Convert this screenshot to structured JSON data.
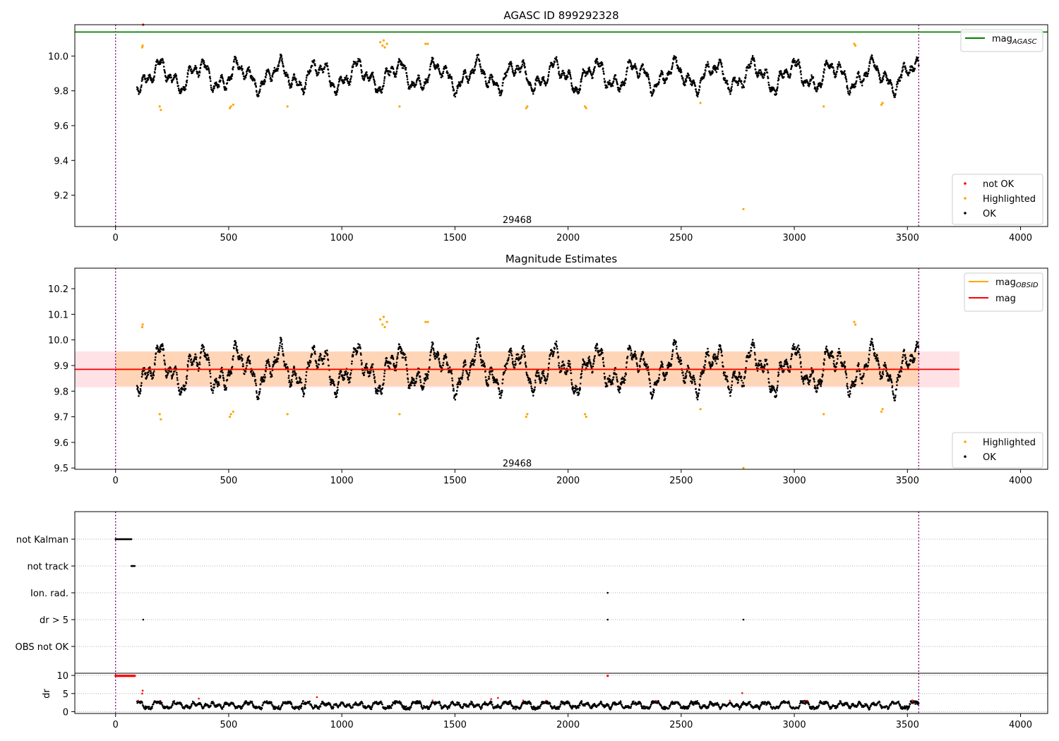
{
  "chart_data": [
    {
      "type": "scatter",
      "title": "AGASC ID 899292328",
      "xlim": [
        -180,
        4120
      ],
      "ylim": [
        9.02,
        10.18
      ],
      "x_ticks": [
        0,
        500,
        1000,
        1500,
        2000,
        2500,
        3000,
        3500,
        4000
      ],
      "x_tick_labels": [
        "0",
        "500",
        "1000",
        "1500",
        "2000",
        "2500",
        "3000",
        "3500",
        "4000"
      ],
      "y_ticks": [
        9.2,
        9.4,
        9.6,
        9.8,
        10.0
      ],
      "y_tick_labels": [
        "9.2",
        "9.4",
        "9.6",
        "9.8",
        "10.0"
      ],
      "obsid_boundaries": [
        0,
        3550
      ],
      "annotation": {
        "text": "29468",
        "x": 1775,
        "y": 9.06
      },
      "mag_agasc": 10.138,
      "legend_top": [
        {
          "label": "mag",
          "sub": "AGASC",
          "color": "#008000"
        }
      ],
      "legend_bottom": [
        {
          "label": "not OK",
          "color": "#ff0000"
        },
        {
          "label": "Highlighted",
          "color": "#ffa500"
        },
        {
          "label": "OK",
          "color": "#000000"
        }
      ],
      "highlighted": [
        [
          118,
          10.05
        ],
        [
          120,
          10.06
        ],
        [
          195,
          9.71
        ],
        [
          200,
          9.69
        ],
        [
          505,
          9.7
        ],
        [
          510,
          9.71
        ],
        [
          520,
          9.72
        ],
        [
          760,
          9.71
        ],
        [
          1170,
          10.08
        ],
        [
          1180,
          10.06
        ],
        [
          1185,
          10.09
        ],
        [
          1190,
          10.05
        ],
        [
          1200,
          10.07
        ],
        [
          1255,
          9.71
        ],
        [
          1370,
          10.07
        ],
        [
          1380,
          10.07
        ],
        [
          1815,
          9.7
        ],
        [
          1820,
          9.71
        ],
        [
          2075,
          9.71
        ],
        [
          2080,
          9.7
        ],
        [
          2585,
          9.73
        ],
        [
          2775,
          9.12
        ],
        [
          3130,
          9.71
        ],
        [
          3265,
          10.07
        ],
        [
          3270,
          10.06
        ],
        [
          3385,
          9.72
        ],
        [
          3390,
          9.73
        ]
      ],
      "not_ok": [
        [
          122,
          10.18
        ],
        [
          124,
          10.19
        ]
      ]
    },
    {
      "type": "scatter",
      "title": "Magnitude Estimates",
      "xlim": [
        -180,
        4120
      ],
      "ylim": [
        9.495,
        10.28
      ],
      "x_ticks": [
        0,
        500,
        1000,
        1500,
        2000,
        2500,
        3000,
        3500,
        4000
      ],
      "x_tick_labels": [
        "0",
        "500",
        "1000",
        "1500",
        "2000",
        "2500",
        "3000",
        "3500",
        "4000"
      ],
      "y_ticks": [
        9.5,
        9.6,
        9.7,
        9.8,
        9.9,
        10.0,
        10.1,
        10.2
      ],
      "y_tick_labels": [
        "9.5",
        "9.6",
        "9.7",
        "9.8",
        "9.9",
        "10.0",
        "10.1",
        "10.2"
      ],
      "obsid_boundaries": [
        0,
        3550
      ],
      "annotation": {
        "text": "29468",
        "x": 1775,
        "y": 9.52
      },
      "mag_line": 9.885,
      "mag_band": [
        9.815,
        9.955
      ],
      "mag_band_x": [
        -180,
        3730
      ],
      "mag_obsid": 9.885,
      "mag_obsid_band": [
        9.82,
        9.955
      ],
      "mag_obsid_x": [
        0,
        3550
      ],
      "legend_top": [
        {
          "label": "mag",
          "sub": "OBSID",
          "color": "#ffa500"
        },
        {
          "label": "mag",
          "sub": "",
          "color": "#ff0000"
        }
      ],
      "legend_bottom": [
        {
          "label": "Highlighted",
          "color": "#ffa500"
        },
        {
          "label": "OK",
          "color": "#000000"
        }
      ],
      "highlighted": [
        [
          118,
          10.05
        ],
        [
          120,
          10.06
        ],
        [
          195,
          9.71
        ],
        [
          200,
          9.69
        ],
        [
          505,
          9.7
        ],
        [
          510,
          9.71
        ],
        [
          520,
          9.72
        ],
        [
          760,
          9.71
        ],
        [
          1170,
          10.08
        ],
        [
          1180,
          10.06
        ],
        [
          1185,
          10.09
        ],
        [
          1190,
          10.05
        ],
        [
          1200,
          10.07
        ],
        [
          1255,
          9.71
        ],
        [
          1370,
          10.07
        ],
        [
          1380,
          10.07
        ],
        [
          1815,
          9.7
        ],
        [
          1820,
          9.71
        ],
        [
          2075,
          9.71
        ],
        [
          2080,
          9.7
        ],
        [
          2585,
          9.73
        ],
        [
          2775,
          9.5
        ],
        [
          3130,
          9.71
        ],
        [
          3265,
          10.07
        ],
        [
          3270,
          10.06
        ],
        [
          3385,
          9.72
        ],
        [
          3390,
          9.73
        ]
      ]
    },
    {
      "type": "scatter",
      "title": "",
      "xlim": [
        -180,
        4120
      ],
      "categories": [
        "not Kalman",
        "not track",
        "Ion. rad.",
        "dr > 5",
        "OBS not OK"
      ],
      "obsid_boundaries": [
        0,
        3550
      ],
      "flags": {
        "not Kalman": [
          0,
          70
        ],
        "not track": [
          70,
          85
        ],
        "Ion. rad.": [
          2175
        ],
        "dr > 5": [
          122,
          2175,
          2775
        ],
        "OBS not OK": []
      }
    },
    {
      "type": "scatter",
      "title": "",
      "xlim": [
        -180,
        4120
      ],
      "ylim": [
        -0.5,
        10.6
      ],
      "ylabel": "dr",
      "x_ticks": [
        0,
        500,
        1000,
        1500,
        2000,
        2500,
        3000,
        3500,
        4000
      ],
      "x_tick_labels": [
        "0",
        "500",
        "1000",
        "1500",
        "2000",
        "2500",
        "3000",
        "3500",
        "4000"
      ],
      "y_ticks": [
        0,
        5,
        10
      ],
      "y_tick_labels": [
        "0",
        "5",
        "10"
      ],
      "obsid_boundaries": [
        0,
        3550
      ],
      "clipped_red_range": [
        0,
        85
      ],
      "clipped_red_extra": [
        [
          2175,
          9.9
        ]
      ],
      "not_ok_extra": [
        [
          118,
          5.0
        ],
        [
          120,
          5.8
        ],
        [
          2770,
          5.1
        ],
        [
          368,
          3.6
        ],
        [
          890,
          4.0
        ],
        [
          1660,
          3.5
        ],
        [
          1690,
          3.8
        ]
      ]
    }
  ]
}
